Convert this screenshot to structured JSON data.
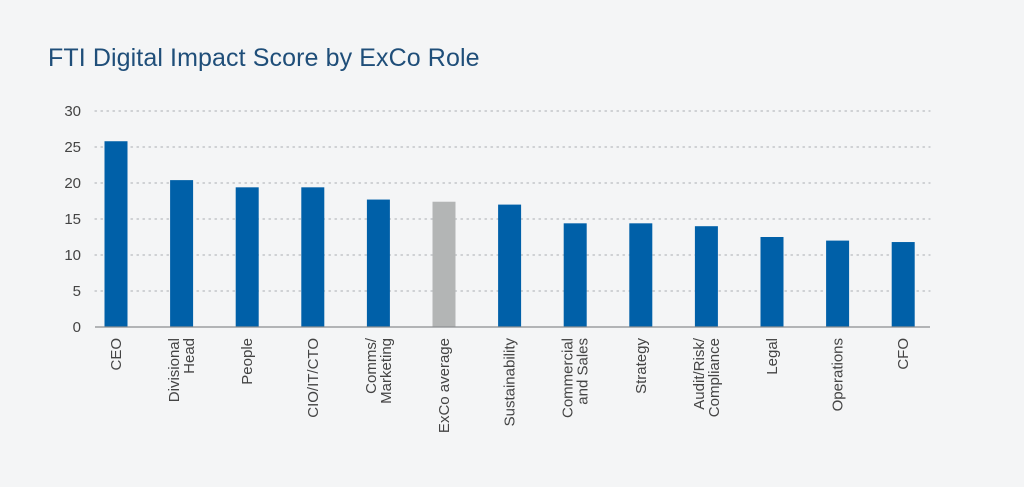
{
  "chart_data": {
    "type": "bar",
    "title": "FTI Digital Impact Score by ExCo Role",
    "categories": [
      "CEO",
      "Divisional\nHead",
      "People",
      "CIO/IT/CTO",
      "Comms/\nMarketing",
      "ExCo average",
      "Sustainability",
      "Commercial\nand Sales",
      "Strategy",
      "Audit/Risk/\nCompliance",
      "Legal",
      "Operations",
      "CFO"
    ],
    "values": [
      25.8,
      20.4,
      19.4,
      19.4,
      17.7,
      17.4,
      17.0,
      14.4,
      14.4,
      14.0,
      12.5,
      12.0,
      11.8
    ],
    "ylim": [
      0,
      30
    ],
    "yticks": [
      0,
      5,
      10,
      15,
      20,
      25,
      30
    ],
    "grid": true,
    "colors": {
      "bar": "#0060a8",
      "highlight": "#b3b5b5"
    },
    "highlight_category": "ExCo average",
    "xlabel": "",
    "ylabel": ""
  }
}
